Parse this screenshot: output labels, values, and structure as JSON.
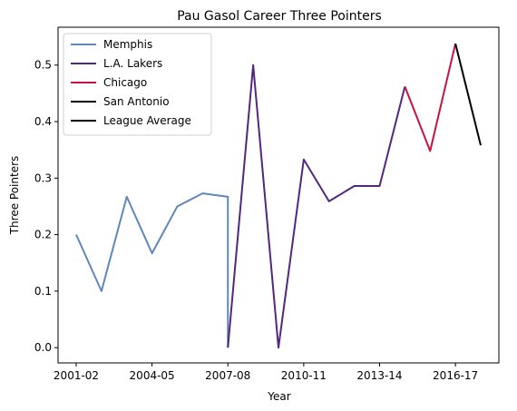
{
  "chart_data": {
    "type": "line",
    "title": "Pau Gasol Career Three Pointers",
    "xlabel": "Year",
    "ylabel": "Three Pointers",
    "x_ticks": [
      "2001-02",
      "2004-05",
      "2007-08",
      "2010-11",
      "2013-14",
      "2016-17"
    ],
    "y_ticks": [
      "0.0",
      "0.1",
      "0.2",
      "0.3",
      "0.4",
      "0.5"
    ],
    "ylim": [
      -0.027,
      0.567
    ],
    "grid": false,
    "legend_position": "top-left",
    "series": [
      {
        "name": "Memphis",
        "color": "#5f87bb",
        "points": [
          [
            "2001-02",
            0.2
          ],
          [
            "2002-03",
            0.1
          ],
          [
            "2003-04",
            0.267
          ],
          [
            "2004-05",
            0.167
          ],
          [
            "2005-06",
            0.25
          ],
          [
            "2006-07",
            0.273
          ],
          [
            "2007-08",
            0.267
          ],
          [
            "2007-08",
            0.0
          ]
        ]
      },
      {
        "name": "L.A. Lakers",
        "color": "#55267e",
        "points": [
          [
            "2007-08",
            0.0
          ],
          [
            "2008-09",
            0.5
          ],
          [
            "2009-10",
            0.0
          ],
          [
            "2010-11",
            0.333
          ],
          [
            "2011-12",
            0.259
          ],
          [
            "2012-13",
            0.286
          ],
          [
            "2013-14",
            0.286
          ],
          [
            "2014-15",
            0.462
          ]
        ]
      },
      {
        "name": "Chicago",
        "color": "#c8123f",
        "points": [
          [
            "2014-15",
            0.462
          ],
          [
            "2015-16",
            0.348
          ],
          [
            "2016-17",
            0.538
          ]
        ]
      },
      {
        "name": "San Antonio",
        "color": "#000000",
        "points": [
          [
            "2016-17",
            0.538
          ],
          [
            "2017-18",
            0.358
          ]
        ]
      },
      {
        "name": "League Average",
        "color": "#000000",
        "points": []
      }
    ]
  }
}
